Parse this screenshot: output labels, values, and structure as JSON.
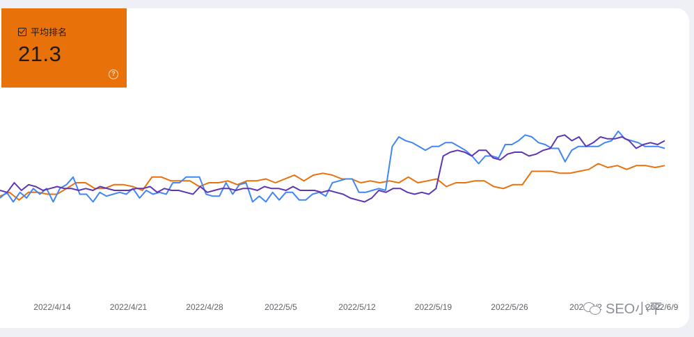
{
  "metric_card": {
    "label": "平均排名",
    "value": "21.3",
    "checked": true,
    "help_symbol": "?",
    "color": "#e8710a"
  },
  "watermark": {
    "text": "SEO小平",
    "icon": "wechat-icon"
  },
  "chart_data": {
    "type": "line",
    "x_tick_labels": [
      "2022/4/14",
      "2022/4/21",
      "2022/4/28",
      "2022/5/5",
      "2022/5/12",
      "2022/5/19",
      "2022/5/26",
      "2022/6/2",
      "2022/6/9"
    ],
    "y_axis": "unlabeled, inverted (smaller rank drawn higher)",
    "ylim": [
      0,
      100
    ],
    "grid": false,
    "series": [
      {
        "color": "#e8710a",
        "values": [
          59,
          57,
          61,
          57,
          57,
          58,
          58,
          55,
          52,
          52,
          55,
          55,
          53,
          53,
          54,
          56,
          49,
          49,
          51,
          51,
          51,
          54,
          52,
          52,
          51,
          53,
          51,
          51,
          50,
          52,
          50,
          48,
          51,
          48,
          47,
          48,
          50,
          50,
          52,
          51,
          52,
          51,
          52,
          49,
          52,
          51,
          50,
          54,
          52,
          52,
          51,
          51,
          54,
          55,
          53,
          53,
          46,
          46,
          46,
          47,
          47,
          46,
          45,
          42,
          44,
          43,
          45,
          43,
          43,
          44,
          43
        ]
      },
      {
        "color": "#4285f4",
        "values": [
          60,
          57,
          62,
          57,
          60,
          55,
          58,
          55,
          62,
          55,
          53,
          49,
          58,
          58,
          62,
          57,
          59,
          58,
          57,
          58,
          55,
          60,
          56,
          58,
          57,
          58,
          52,
          52,
          49,
          49,
          49,
          58,
          59,
          59,
          52,
          58,
          53,
          52,
          62,
          59,
          62,
          57,
          61,
          57,
          57,
          61,
          61,
          58,
          57,
          59,
          52,
          51,
          50,
          50,
          57,
          57,
          56,
          55,
          56,
          33,
          28,
          30,
          31,
          33,
          35,
          33,
          33,
          31,
          31,
          33,
          35,
          38,
          42,
          38,
          38,
          39,
          32,
          32,
          30,
          27,
          28,
          31,
          32,
          34,
          34,
          41,
          35,
          33,
          33,
          33,
          33,
          31,
          30,
          25,
          29,
          30,
          31,
          33,
          33,
          33,
          34
        ]
      },
      {
        "color": "#5e35b1",
        "values": [
          56,
          57,
          52,
          56,
          53,
          54,
          56,
          55,
          54,
          55,
          55,
          56,
          55,
          56,
          54,
          55,
          56,
          56,
          56,
          55,
          55,
          54,
          57,
          55,
          56,
          56,
          57,
          58,
          54,
          57,
          56,
          55,
          55,
          56,
          55,
          55,
          56,
          54,
          55,
          55,
          56,
          54,
          56,
          56,
          56,
          57,
          56,
          57,
          58,
          60,
          61,
          62,
          60,
          56,
          57,
          55,
          55,
          57,
          58,
          57,
          58,
          55,
          38,
          36,
          35,
          36,
          38,
          35,
          35,
          39,
          40,
          37,
          36,
          36,
          38,
          37,
          35,
          34,
          28,
          27,
          30,
          28,
          33,
          31,
          28,
          29,
          29,
          28,
          30,
          34,
          32,
          31,
          32,
          30
        ]
      }
    ]
  }
}
